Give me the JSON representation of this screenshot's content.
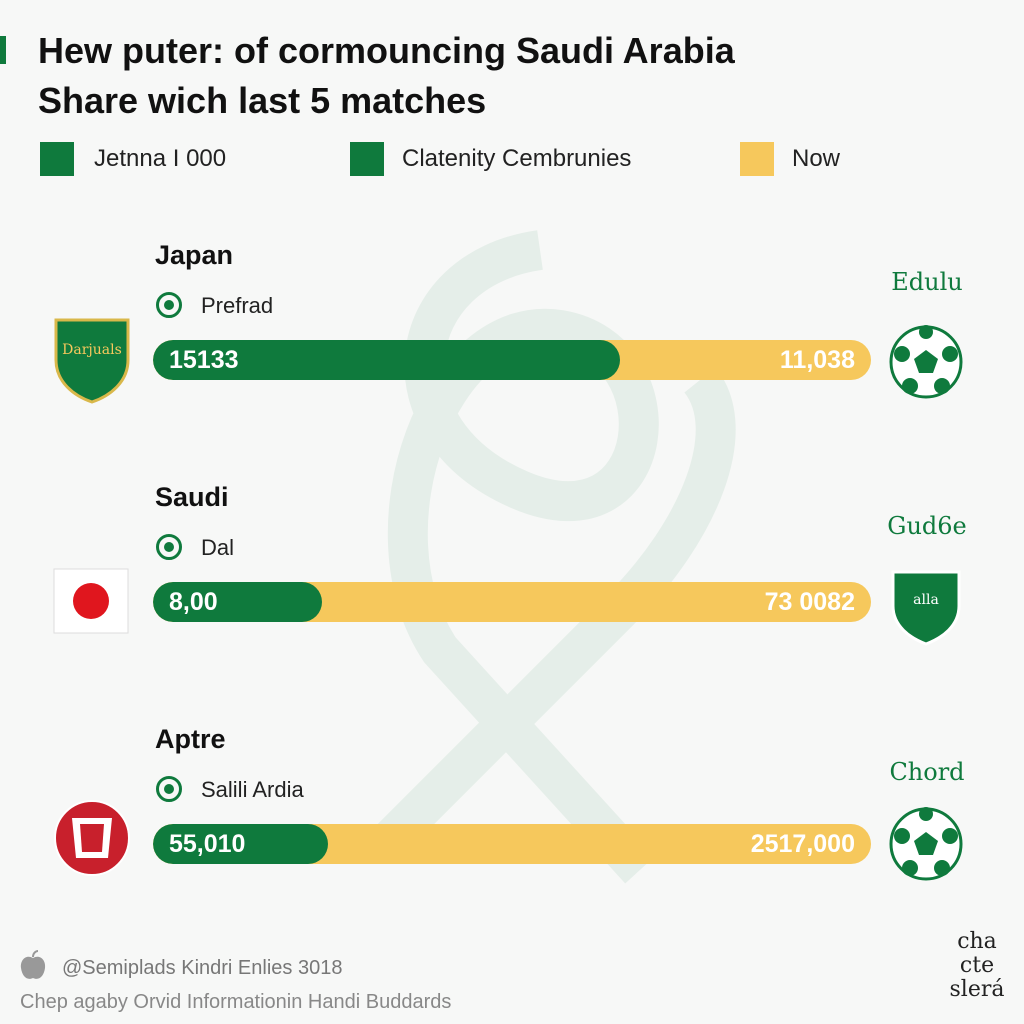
{
  "header": {
    "title_lines": [
      "Hew puter: of cormouncing Saudi Arabia",
      "Share wich last 5 matches"
    ]
  },
  "legend": [
    "Jetnna I 000",
    "Clatenity Cembrunies",
    "Now"
  ],
  "rows": [
    {
      "team": "Japan",
      "option": "Prefrad",
      "left": "15133",
      "right": "11,038",
      "badge": "Darjuals",
      "right_script": "Edulu"
    },
    {
      "team": "Saudi",
      "option": "Dal",
      "left": "8,00",
      "right": "73 0082",
      "badge_right": "alla",
      "right_script": "Gud6e"
    },
    {
      "team": "Aptre",
      "option": "Salili Ardia",
      "left": "55,010",
      "right": "2517,000",
      "right_script": "Chord"
    }
  ],
  "footer": {
    "line1": "@Semiplads Kindri Enlies 3018",
    "line2": "Chep agaby Orvid Informationin Handi Buddards",
    "corner": "cha cte slerá"
  }
}
